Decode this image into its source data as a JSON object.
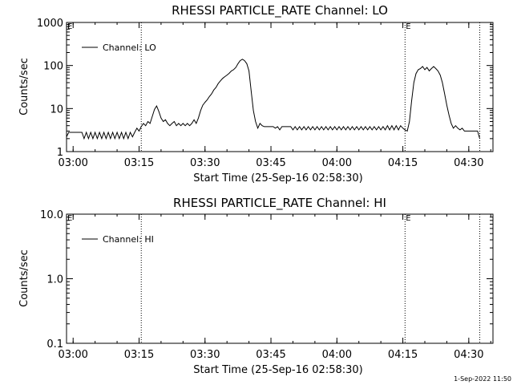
{
  "chart_data": [
    {
      "type": "line",
      "title": "RHESSI PARTICLE_RATE Channel: LO",
      "xlabel": "Start Time (25-Sep-16 02:58:30)",
      "ylabel": "Counts/sec",
      "yscale": "log",
      "ylim": [
        1,
        1000
      ],
      "xlim": [
        "02:58:30",
        "04:35:30"
      ],
      "x_ticks": [
        "03:00",
        "03:15",
        "03:30",
        "03:45",
        "04:00",
        "04:15",
        "04:30"
      ],
      "y_ticks": [
        "1",
        "10",
        "100",
        "1000"
      ],
      "legend": {
        "position": "top-left"
      },
      "markers": [
        {
          "time": "03:15:30",
          "label": ""
        },
        {
          "time": "04:15:30",
          "label": "E"
        },
        {
          "time": "04:32:30",
          "label": ""
        }
      ],
      "series": [
        {
          "name": "Channel: LO",
          "points": [
            [
              "02:58:30",
              2.2
            ],
            [
              "02:59:00",
              2.8
            ],
            [
              "03:00:00",
              2.8
            ],
            [
              "03:01:00",
              2.8
            ],
            [
              "03:02:00",
              2.8
            ],
            [
              "03:02:30",
              2.0
            ],
            [
              "03:03:00",
              2.8
            ],
            [
              "03:03:30",
              2.0
            ],
            [
              "03:04:00",
              2.8
            ],
            [
              "03:04:30",
              2.0
            ],
            [
              "03:05:00",
              2.8
            ],
            [
              "03:05:30",
              2.0
            ],
            [
              "03:06:00",
              2.8
            ],
            [
              "03:06:30",
              2.0
            ],
            [
              "03:07:00",
              2.8
            ],
            [
              "03:07:30",
              2.0
            ],
            [
              "03:08:00",
              2.8
            ],
            [
              "03:08:30",
              2.0
            ],
            [
              "03:09:00",
              2.8
            ],
            [
              "03:09:30",
              2.0
            ],
            [
              "03:10:00",
              2.8
            ],
            [
              "03:10:30",
              2.0
            ],
            [
              "03:11:00",
              2.8
            ],
            [
              "03:11:30",
              2.0
            ],
            [
              "03:12:00",
              2.8
            ],
            [
              "03:12:30",
              2.0
            ],
            [
              "03:13:00",
              2.8
            ],
            [
              "03:13:30",
              2.2
            ],
            [
              "03:14:00",
              2.8
            ],
            [
              "03:14:30",
              3.5
            ],
            [
              "03:15:00",
              3.0
            ],
            [
              "03:15:30",
              3.8
            ],
            [
              "03:16:00",
              4.5
            ],
            [
              "03:16:30",
              4.0
            ],
            [
              "03:17:00",
              5.0
            ],
            [
              "03:17:30",
              4.5
            ],
            [
              "03:18:00",
              6.5
            ],
            [
              "03:18:30",
              9.5
            ],
            [
              "03:19:00",
              11.5
            ],
            [
              "03:19:30",
              8.5
            ],
            [
              "03:20:00",
              6.0
            ],
            [
              "03:20:30",
              5.0
            ],
            [
              "03:21:00",
              5.5
            ],
            [
              "03:21:30",
              4.5
            ],
            [
              "03:22:00",
              4.0
            ],
            [
              "03:22:30",
              4.5
            ],
            [
              "03:23:00",
              5.0
            ],
            [
              "03:23:30",
              4.0
            ],
            [
              "03:24:00",
              4.5
            ],
            [
              "03:24:30",
              4.0
            ],
            [
              "03:25:00",
              4.5
            ],
            [
              "03:25:30",
              4.0
            ],
            [
              "03:26:00",
              4.5
            ],
            [
              "03:26:30",
              4.0
            ],
            [
              "03:27:00",
              4.5
            ],
            [
              "03:27:30",
              5.5
            ],
            [
              "03:28:00",
              4.5
            ],
            [
              "03:28:30",
              6.0
            ],
            [
              "03:29:00",
              9.0
            ],
            [
              "03:29:30",
              12.0
            ],
            [
              "03:30:00",
              14.0
            ],
            [
              "03:30:30",
              16.0
            ],
            [
              "03:31:00",
              19.0
            ],
            [
              "03:31:30",
              22.0
            ],
            [
              "03:32:00",
              27.0
            ],
            [
              "03:32:30",
              31.0
            ],
            [
              "03:33:00",
              38.0
            ],
            [
              "03:33:30",
              44.0
            ],
            [
              "03:34:00",
              50.0
            ],
            [
              "03:34:30",
              55.0
            ],
            [
              "03:35:00",
              60.0
            ],
            [
              "03:35:30",
              66.0
            ],
            [
              "03:36:00",
              75.0
            ],
            [
              "03:36:30",
              80.0
            ],
            [
              "03:37:00",
              90.0
            ],
            [
              "03:37:30",
              110.0
            ],
            [
              "03:38:00",
              130.0
            ],
            [
              "03:38:30",
              140.0
            ],
            [
              "03:39:00",
              130.0
            ],
            [
              "03:39:30",
              110.0
            ],
            [
              "03:40:00",
              75.0
            ],
            [
              "03:40:30",
              25.0
            ],
            [
              "03:41:00",
              9.0
            ],
            [
              "03:41:30",
              5.0
            ],
            [
              "03:42:00",
              3.5
            ],
            [
              "03:42:30",
              4.5
            ],
            [
              "03:43:00",
              4.0
            ],
            [
              "03:43:30",
              3.8
            ],
            [
              "03:44:00",
              3.8
            ],
            [
              "03:44:30",
              3.8
            ],
            [
              "03:45:00",
              3.8
            ],
            [
              "03:45:30",
              3.8
            ],
            [
              "03:46:00",
              3.5
            ],
            [
              "03:46:30",
              3.8
            ],
            [
              "03:47:00",
              3.2
            ],
            [
              "03:47:30",
              3.8
            ],
            [
              "03:48:00",
              3.8
            ],
            [
              "03:48:30",
              3.8
            ],
            [
              "03:49:00",
              3.8
            ],
            [
              "03:49:30",
              3.8
            ],
            [
              "03:50:00",
              3.2
            ],
            [
              "03:50:30",
              3.8
            ],
            [
              "03:51:00",
              3.2
            ],
            [
              "03:51:30",
              3.8
            ],
            [
              "03:52:00",
              3.2
            ],
            [
              "03:52:30",
              3.8
            ],
            [
              "03:53:00",
              3.2
            ],
            [
              "03:53:30",
              3.8
            ],
            [
              "03:54:00",
              3.2
            ],
            [
              "03:54:30",
              3.8
            ],
            [
              "03:55:00",
              3.2
            ],
            [
              "03:55:30",
              3.8
            ],
            [
              "03:56:00",
              3.2
            ],
            [
              "03:56:30",
              3.8
            ],
            [
              "03:57:00",
              3.2
            ],
            [
              "03:57:30",
              3.8
            ],
            [
              "03:58:00",
              3.2
            ],
            [
              "03:58:30",
              3.8
            ],
            [
              "03:59:00",
              3.2
            ],
            [
              "03:59:30",
              3.8
            ],
            [
              "04:00:00",
              3.2
            ],
            [
              "04:00:30",
              3.8
            ],
            [
              "04:01:00",
              3.2
            ],
            [
              "04:01:30",
              3.8
            ],
            [
              "04:02:00",
              3.2
            ],
            [
              "04:02:30",
              3.8
            ],
            [
              "04:03:00",
              3.2
            ],
            [
              "04:03:30",
              3.8
            ],
            [
              "04:04:00",
              3.2
            ],
            [
              "04:04:30",
              3.8
            ],
            [
              "04:05:00",
              3.2
            ],
            [
              "04:05:30",
              3.8
            ],
            [
              "04:06:00",
              3.2
            ],
            [
              "04:06:30",
              3.8
            ],
            [
              "04:07:00",
              3.2
            ],
            [
              "04:07:30",
              3.8
            ],
            [
              "04:08:00",
              3.2
            ],
            [
              "04:08:30",
              3.8
            ],
            [
              "04:09:00",
              3.2
            ],
            [
              "04:09:30",
              3.8
            ],
            [
              "04:10:00",
              3.2
            ],
            [
              "04:10:30",
              3.8
            ],
            [
              "04:11:00",
              3.2
            ],
            [
              "04:11:30",
              4.0
            ],
            [
              "04:12:00",
              3.2
            ],
            [
              "04:12:30",
              4.0
            ],
            [
              "04:13:00",
              3.2
            ],
            [
              "04:13:30",
              4.0
            ],
            [
              "04:14:00",
              3.2
            ],
            [
              "04:14:30",
              4.0
            ],
            [
              "04:15:00",
              3.5
            ],
            [
              "04:15:30",
              3.2
            ],
            [
              "04:16:00",
              3.0
            ],
            [
              "04:16:30",
              5.0
            ],
            [
              "04:17:00",
              15.0
            ],
            [
              "04:17:30",
              40.0
            ],
            [
              "04:18:00",
              65.0
            ],
            [
              "04:18:30",
              80.0
            ],
            [
              "04:19:00",
              85.0
            ],
            [
              "04:19:30",
              95.0
            ],
            [
              "04:20:00",
              80.0
            ],
            [
              "04:20:30",
              90.0
            ],
            [
              "04:21:00",
              75.0
            ],
            [
              "04:21:30",
              85.0
            ],
            [
              "04:22:00",
              95.0
            ],
            [
              "04:22:30",
              85.0
            ],
            [
              "04:23:00",
              75.0
            ],
            [
              "04:23:30",
              60.0
            ],
            [
              "04:24:00",
              40.0
            ],
            [
              "04:24:30",
              22.0
            ],
            [
              "04:25:00",
              12.0
            ],
            [
              "04:25:30",
              7.0
            ],
            [
              "04:26:00",
              4.5
            ],
            [
              "04:26:30",
              3.5
            ],
            [
              "04:27:00",
              4.0
            ],
            [
              "04:27:30",
              3.5
            ],
            [
              "04:28:00",
              3.2
            ],
            [
              "04:28:30",
              3.5
            ],
            [
              "04:29:00",
              3.0
            ],
            [
              "04:29:30",
              3.0
            ],
            [
              "04:30:00",
              3.0
            ],
            [
              "04:30:30",
              3.0
            ],
            [
              "04:31:00",
              3.0
            ],
            [
              "04:31:30",
              3.0
            ],
            [
              "04:32:00",
              3.0
            ],
            [
              "04:32:30",
              2.0
            ]
          ]
        }
      ]
    },
    {
      "type": "line",
      "title": "RHESSI PARTICLE_RATE Channel: HI",
      "xlabel": "Start Time (25-Sep-16 02:58:30)",
      "ylabel": "Counts/sec",
      "yscale": "log",
      "ylim": [
        0.1,
        10.0
      ],
      "xlim": [
        "02:58:30",
        "04:35:30"
      ],
      "x_ticks": [
        "03:00",
        "03:15",
        "03:30",
        "03:45",
        "04:00",
        "04:15",
        "04:30"
      ],
      "y_ticks": [
        "0.1",
        "1.0",
        "10.0"
      ],
      "legend": {
        "position": "top-left"
      },
      "markers": [
        {
          "time": "03:15:30",
          "label": ""
        },
        {
          "time": "04:15:30",
          "label": "E"
        },
        {
          "time": "04:32:30",
          "label": ""
        }
      ],
      "series": [
        {
          "name": "Channel: HI",
          "points": []
        }
      ]
    }
  ],
  "footer": {
    "timestamp": "1-Sep-2022 11:50"
  }
}
